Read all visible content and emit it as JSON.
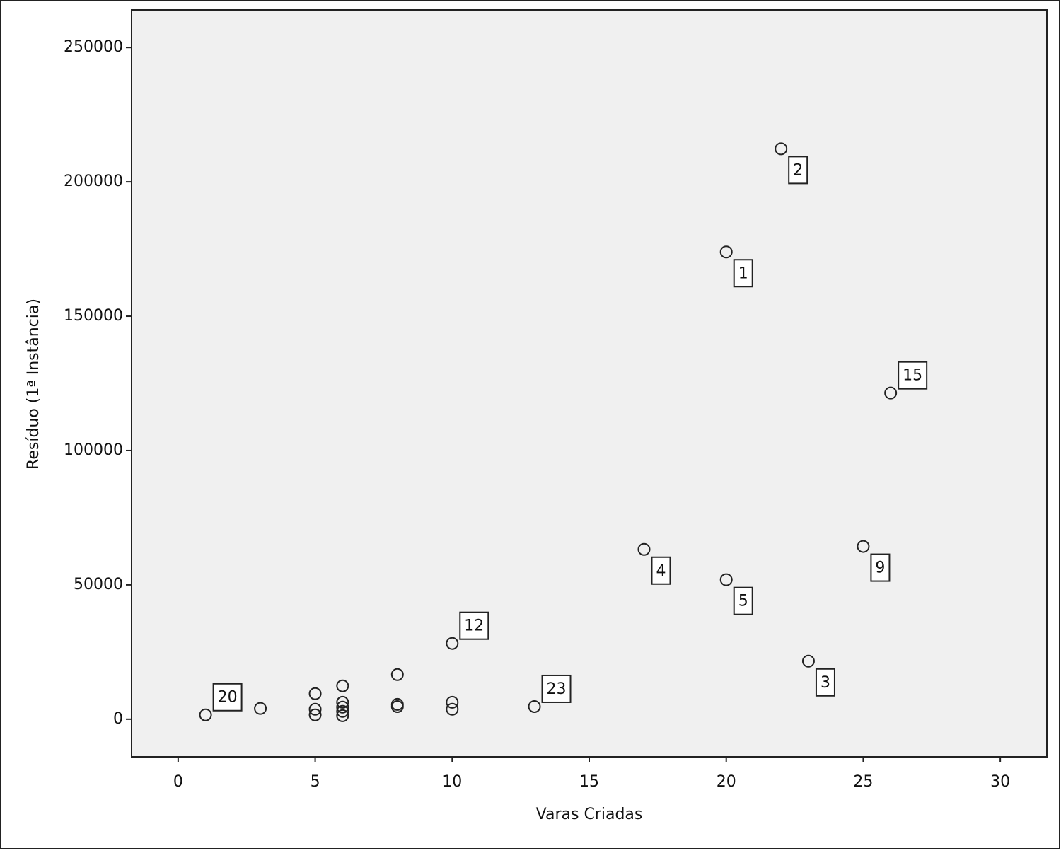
{
  "chart_data": {
    "type": "scatter",
    "x_label": "Varas Criadas",
    "y_label": "Resíduo (1ª Instância)",
    "x": [
      22,
      20,
      26,
      17,
      25,
      20,
      10,
      23,
      13,
      1,
      3,
      5,
      5,
      5,
      6,
      6,
      6,
      6,
      6,
      8,
      8,
      8,
      10,
      10
    ],
    "values": [
      212300,
      173900,
      121400,
      63200,
      64300,
      51900,
      28200,
      21600,
      4700,
      1600,
      4000,
      9500,
      3700,
      1600,
      12400,
      6300,
      4500,
      2900,
      1300,
      16600,
      5500,
      4700,
      6300,
      3700
    ],
    "point_labels": [
      "2",
      "1",
      "15",
      "4",
      "9",
      "5",
      "12",
      "3",
      "23",
      "20",
      null,
      null,
      null,
      null,
      null,
      null,
      null,
      null,
      null,
      null,
      null,
      null,
      null,
      null
    ],
    "color": "#222222",
    "xlim": [
      -1.7,
      31.7
    ],
    "ylim": [
      -14000,
      264000
    ],
    "xticks": [
      0,
      5,
      10,
      15,
      20,
      25,
      30
    ],
    "yticks": [
      0,
      50000,
      100000,
      150000,
      200000,
      250000
    ],
    "grid": false
  }
}
